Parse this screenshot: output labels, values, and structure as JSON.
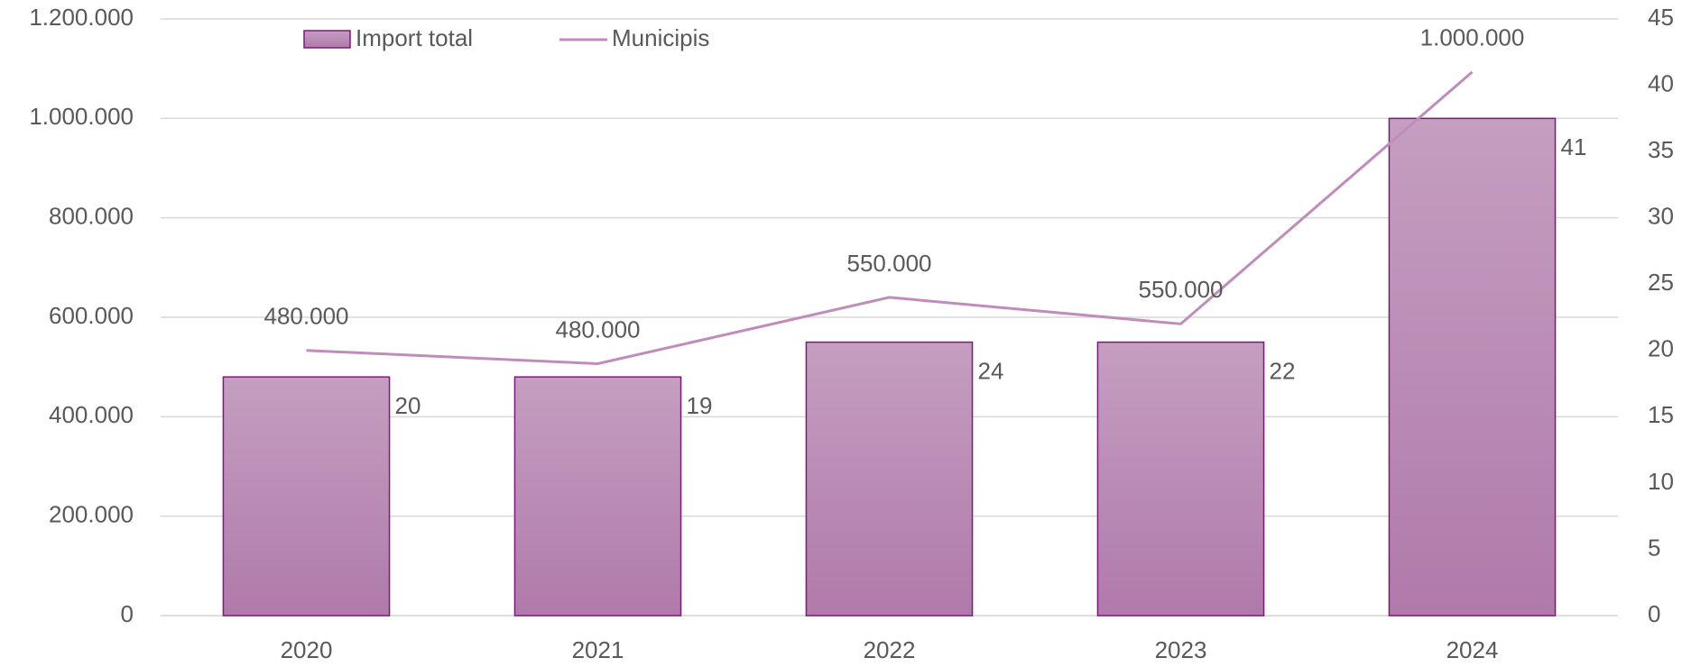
{
  "chart_data": {
    "type": "bar",
    "categories": [
      "2020",
      "2021",
      "2022",
      "2023",
      "2024"
    ],
    "series": [
      {
        "name": "Import total",
        "type": "bar",
        "color": "#b583ae",
        "values": [
          480000,
          480000,
          550000,
          550000,
          1000000
        ],
        "value_labels": [
          "480.000",
          "480.000",
          "550.000",
          "550.000",
          "1.000.000"
        ]
      },
      {
        "name": "Municipis",
        "type": "line",
        "axis": "y2",
        "color": "#c08cbb",
        "values": [
          20,
          19,
          24,
          22,
          41
        ]
      }
    ],
    "ylim": [
      0,
      1200000
    ],
    "yticks": [
      0,
      {
        "value": 200000,
        "label": "200.000"
      },
      {
        "value": 400000,
        "label": "400.000"
      },
      {
        "value": 600000,
        "label": "600.000"
      },
      {
        "value": 800000,
        "label": "800.000"
      },
      {
        "value": 1000000,
        "label": "1.000.000"
      },
      {
        "value": 1200000,
        "label": "1.200.000"
      }
    ],
    "y2lim": [
      0,
      45
    ],
    "y2ticks": [
      0,
      5,
      10,
      15,
      20,
      25,
      30,
      35,
      40,
      45
    ],
    "grid": true,
    "legend": "top"
  }
}
